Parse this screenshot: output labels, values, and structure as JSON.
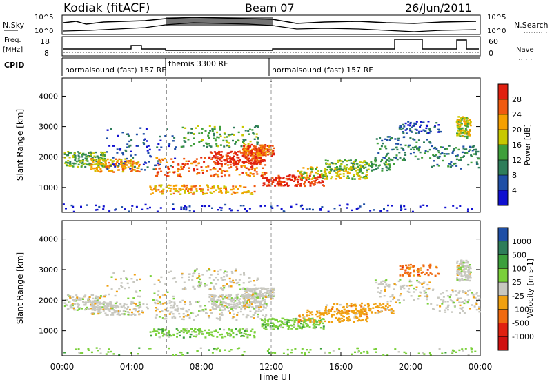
{
  "header": {
    "station": "Kodiak (fitACF)",
    "beam": "Beam 07",
    "date": "26/Jun/2011"
  },
  "summary_panels": {
    "nsky_label": "N.Sky",
    "nsky_ticks": [
      "10^5",
      "10^0"
    ],
    "nsearch_label": "N.Search",
    "nsearch_ticks": [
      "10^5",
      "10^0"
    ],
    "freq_label_1": "Freq.",
    "freq_label_2": "[MHz]",
    "freq_ticks": [
      "18",
      "8"
    ],
    "nave_label": "Nave",
    "nave_ticks": [
      "60",
      "0"
    ],
    "cpid_label": "CPID",
    "cpid_segments": [
      "normalsound (fast) 157 RF",
      "themis 3300 RF",
      "normalsound (fast) 157 RF"
    ]
  },
  "legends": {
    "power": {
      "label": "Power [dB]",
      "ticks": [
        "28",
        "24",
        "20",
        "16",
        "12",
        "8",
        "4"
      ],
      "colors": [
        "#e02010",
        "#f05a10",
        "#f5a000",
        "#c8c800",
        "#3f9f3a",
        "#2e7d5a",
        "#1f4fa6",
        "#1010d0"
      ]
    },
    "velocity": {
      "label": "Velocity [m s-1]",
      "ticks": [
        "1000",
        "500",
        "100",
        "25",
        "-25",
        "-100",
        "-500",
        "-1000"
      ],
      "colors": [
        "#1f4fa6",
        "#2e7d5a",
        "#3ca03c",
        "#7ad03a",
        "#c8c8c0",
        "#f0a010",
        "#f06a10",
        "#e02010",
        "#d01010"
      ]
    }
  },
  "chart_data": [
    {
      "type": "heatmap",
      "title": "Power",
      "xlabel": "Time UT",
      "ylabel": "Slant Range [km]",
      "x_ticks": [
        "00:00",
        "04:00",
        "08:00",
        "12:00",
        "16:00",
        "20:00",
        "00:00"
      ],
      "y_ticks": [
        "1000",
        "2000",
        "3000",
        "4000"
      ],
      "xlim": [
        0,
        24
      ],
      "ylim": [
        180,
        4600
      ],
      "mode_change_hours": [
        6,
        12
      ]
    },
    {
      "type": "heatmap",
      "title": "Velocity",
      "xlabel": "Time UT",
      "ylabel": "Slant Range [km]",
      "x_ticks": [
        "00:00",
        "04:00",
        "08:00",
        "12:00",
        "16:00",
        "20:00",
        "00:00"
      ],
      "y_ticks": [
        "1000",
        "2000",
        "3000",
        "4000"
      ],
      "xlim": [
        0,
        24
      ],
      "ylim": [
        180,
        4600
      ],
      "mode_change_hours": [
        6,
        12
      ]
    }
  ]
}
